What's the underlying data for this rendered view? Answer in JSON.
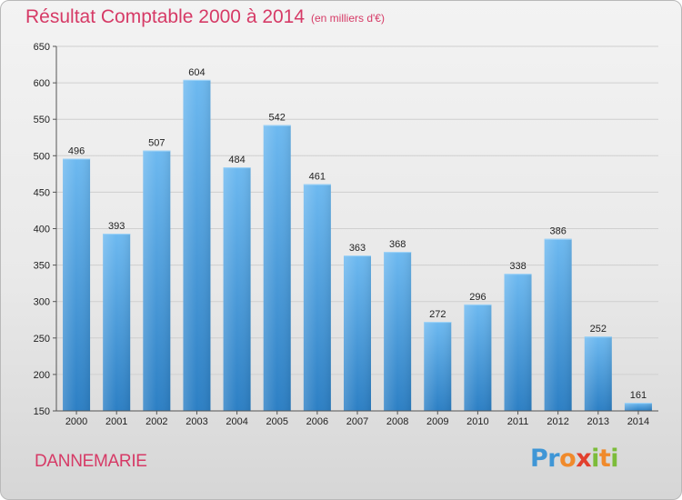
{
  "header": {
    "title": "Résultat Comptable 2000 à 2014",
    "subtitle": "(en milliers d'€)"
  },
  "footer": {
    "commune": "DANNEMARIE",
    "logo_text": "Proxiti"
  },
  "colors": {
    "title": "#d63a66",
    "bar_top": "#6db9f0",
    "bar_bottom": "#2c7fc4"
  },
  "chart_data": {
    "type": "bar",
    "title": "Résultat Comptable 2000 à 2014",
    "subtitle": "(en milliers d'€)",
    "xlabel": "",
    "ylabel": "",
    "categories": [
      "2000",
      "2001",
      "2002",
      "2003",
      "2004",
      "2005",
      "2006",
      "2007",
      "2008",
      "2009",
      "2010",
      "2011",
      "2012",
      "2013",
      "2014"
    ],
    "values": [
      496,
      393,
      507,
      604,
      484,
      542,
      461,
      363,
      368,
      272,
      296,
      338,
      386,
      252,
      161
    ],
    "data_labels": [
      "496",
      "393",
      "507",
      "604",
      "484",
      "542",
      "461",
      "363",
      "368",
      "272",
      "296",
      "338",
      "386",
      "252",
      "161"
    ],
    "ylim": [
      150,
      650
    ],
    "yticks": [
      150,
      200,
      250,
      300,
      350,
      400,
      450,
      500,
      550,
      600,
      650
    ],
    "grid": true,
    "legend": "none"
  }
}
